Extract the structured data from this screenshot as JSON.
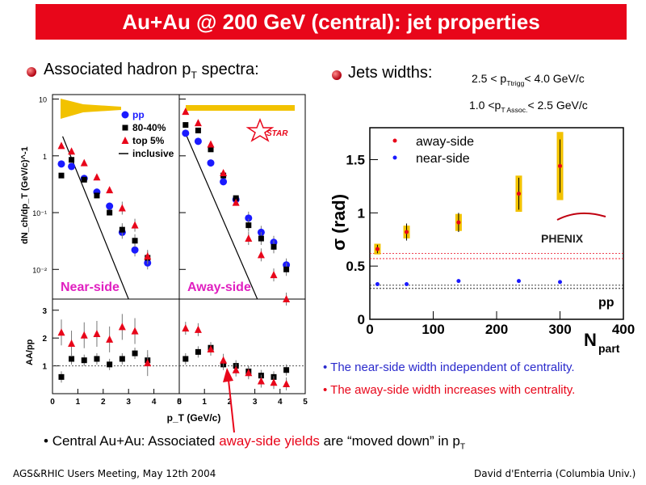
{
  "slide": {
    "title": "Au+Au @ 200 GeV (central): jet properties",
    "left_heading": {
      "text": "Associated hadron p",
      "sub": "T",
      "tail": " spectra:"
    },
    "right_heading": "Jets widths:",
    "cut1": {
      "pre": "2.5 < p",
      "sub": "Ttrigg",
      "post": "< 4.0 GeV/c"
    },
    "cut2": {
      "pre": "1.0 <p",
      "sub": "T Assoc.",
      "post": "< 2.5 GeV/c"
    },
    "note_near": "The near-side width independent of centrality.",
    "note_away": "The away-side width increases with centrality.",
    "bottom": {
      "pre": "Central Au+Au: Associated ",
      "highlight": "away-side yields",
      "post": " are “moved down” in p",
      "sub": "T"
    },
    "footer_left": "AGS&RHIC Users Meeting, May 12th 2004",
    "footer_right": "David d'Enterria (Columbia Univ.)"
  },
  "colors": {
    "title_bg": "#e8061a",
    "blue_text": "#2a2acc",
    "red_text": "#e8061a",
    "pp": "#1a1aff",
    "mid": "#000000",
    "top": "#e8061a",
    "sys_band": "#f2c200"
  },
  "chart_data": [
    {
      "type": "scatter",
      "name_panel": "STAR associated spectra",
      "ylabel": "dN_ch/dp_T (GeV/c)^-1",
      "ylog": true,
      "ylim": [
        0.003,
        12
      ],
      "xlim": [
        0,
        5
      ],
      "yticks": [
        "10",
        "1",
        "10⁻¹",
        "10⁻²"
      ],
      "logo": "STAR",
      "legend": [
        "pp",
        "80-40%",
        "top 5%",
        "inclusive"
      ],
      "panels": [
        {
          "label": "Near-side",
          "x": [
            0.35,
            0.75,
            1.25,
            1.75,
            2.25,
            2.75,
            3.25,
            3.75
          ],
          "series": [
            {
              "name": "pp",
              "values": [
                0.72,
                0.65,
                0.4,
                0.23,
                0.13,
                0.045,
                0.022,
                0.013
              ]
            },
            {
              "name": "80-40%",
              "values": [
                0.45,
                0.85,
                0.38,
                0.2,
                0.1,
                0.05,
                0.032,
                0.016
              ]
            },
            {
              "name": "top 5%",
              "values": [
                1.5,
                1.2,
                0.75,
                0.42,
                0.25,
                0.12,
                0.06,
                0.017
              ]
            }
          ]
        },
        {
          "label": "Away-side",
          "x": [
            0.25,
            0.75,
            1.25,
            1.75,
            2.25,
            2.75,
            3.25,
            3.75,
            4.25
          ],
          "series": [
            {
              "name": "pp",
              "values": [
                2.5,
                1.8,
                0.75,
                0.35,
                0.17,
                0.08,
                0.045,
                0.03,
                0.012
              ]
            },
            {
              "name": "80-40%",
              "values": [
                3.5,
                2.8,
                1.3,
                0.45,
                0.18,
                0.06,
                0.035,
                0.025,
                0.01
              ]
            },
            {
              "name": "top 5%",
              "values": [
                6,
                3.8,
                1.6,
                0.5,
                0.15,
                0.035,
                0.018,
                0.008,
                0.003
              ]
            }
          ]
        }
      ]
    },
    {
      "type": "scatter",
      "name_panel": "AA/pp ratio",
      "ylabel": "AA/pp",
      "xlabel": "p_T (GeV/c)",
      "ylim": [
        0,
        3.4
      ],
      "yticks": [
        1,
        2,
        3
      ],
      "xticks": [
        0,
        1,
        2,
        3,
        4,
        5
      ],
      "panels": [
        {
          "x": [
            0.35,
            0.75,
            1.25,
            1.75,
            2.25,
            2.75,
            3.25,
            3.75
          ],
          "series": [
            {
              "name": "80-40%",
              "values": [
                0.6,
                1.25,
                1.2,
                1.25,
                1.05,
                1.25,
                1.45,
                1.2
              ]
            },
            {
              "name": "top 5%",
              "values": [
                2.2,
                1.8,
                2.1,
                2.15,
                1.95,
                2.4,
                2.25,
                1.1
              ]
            }
          ]
        },
        {
          "x": [
            0.25,
            0.75,
            1.25,
            1.75,
            2.25,
            2.75,
            3.25,
            3.75,
            4.25
          ],
          "series": [
            {
              "name": "80-40%",
              "values": [
                1.25,
                1.5,
                1.65,
                1.05,
                1.0,
                0.8,
                0.65,
                0.6,
                0.85
              ]
            },
            {
              "name": "top 5%",
              "values": [
                2.35,
                2.3,
                1.6,
                1.2,
                0.85,
                0.75,
                0.45,
                0.4,
                0.35
              ]
            }
          ]
        }
      ]
    },
    {
      "type": "scatter",
      "name_panel": "PHENIX jet widths",
      "xlabel": "N_part",
      "ylabel": "σ (rad)",
      "xlim": [
        0,
        400
      ],
      "ylim": [
        0,
        1.8
      ],
      "xticks": [
        0,
        100,
        200,
        300,
        400
      ],
      "yticks": [
        0,
        0.5,
        1,
        1.5
      ],
      "logo": "PHENIX",
      "pp_label": "pp",
      "series": [
        {
          "name": "away-side",
          "x": [
            12,
            58,
            140,
            235,
            300
          ],
          "values": [
            0.66,
            0.82,
            0.91,
            1.18,
            1.44
          ],
          "err": [
            0.04,
            0.08,
            0.09,
            0.15,
            0.25
          ],
          "sys": [
            0.05,
            0.06,
            0.08,
            0.17,
            0.32
          ]
        },
        {
          "name": "near-side",
          "x": [
            12,
            58,
            140,
            235,
            300
          ],
          "values": [
            0.33,
            0.33,
            0.36,
            0.36,
            0.35
          ],
          "err": [
            0.01,
            0.01,
            0.01,
            0.01,
            0.01
          ]
        }
      ],
      "pp_away_band": [
        0.57,
        0.62
      ],
      "pp_near_band": [
        0.29,
        0.32
      ]
    }
  ]
}
